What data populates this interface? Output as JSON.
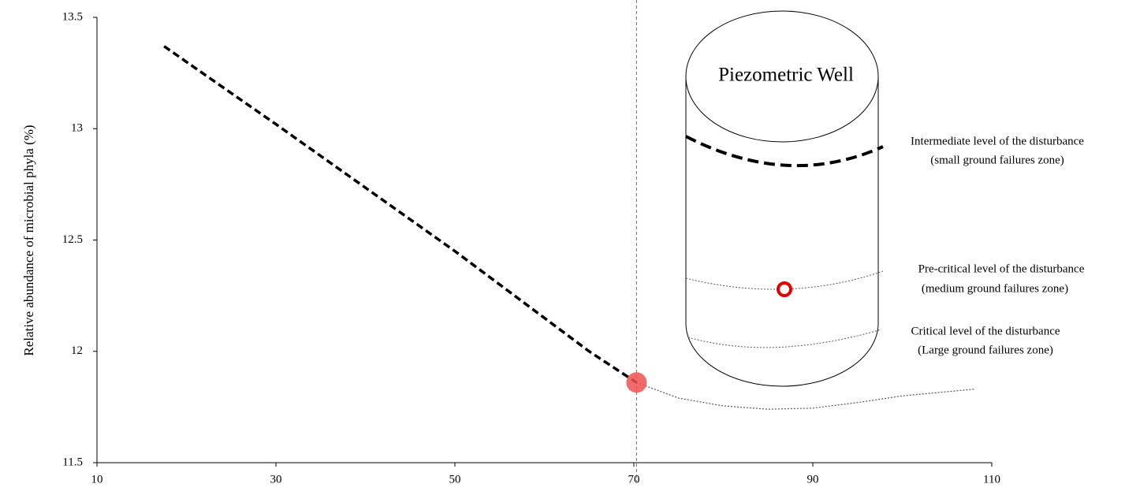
{
  "chart_data": {
    "type": "line",
    "y_label": "Relative abundance of microbial phyla (%)",
    "xlim": [
      10,
      110
    ],
    "xticks": [
      10,
      30,
      50,
      70,
      90,
      110
    ],
    "ylim": [
      11.5,
      13.5
    ],
    "yticks": [
      11.5,
      12,
      12.5,
      13,
      13.5
    ],
    "series": [
      {
        "color": "#000000",
        "style": "dashed",
        "x": [
          17.5,
          30,
          50,
          65,
          70.3
        ],
        "values": [
          13.37,
          13.02,
          12.45,
          12.0,
          11.86
        ]
      },
      {
        "color": "#555555",
        "style": "dotted",
        "x": [
          70.3,
          75,
          80,
          85,
          90,
          95,
          100,
          108
        ],
        "values": [
          11.86,
          11.79,
          11.755,
          11.74,
          11.745,
          11.77,
          11.8,
          11.83
        ]
      }
    ],
    "marker": {
      "x": 70.3,
      "y": 11.86,
      "color": "#f05050"
    },
    "vline": {
      "x": 70.3,
      "color": "#ff3030"
    },
    "annotations": {
      "well": "Piezometric Well",
      "intermediate": [
        "Intermediate level of the disturbance",
        "(small ground failures zone)"
      ],
      "precritical": [
        "Pre-critical level of the disturbance",
        "(medium ground failures zone)"
      ],
      "critical": [
        "Critical level of the disturbance",
        "(Large ground failures zone)"
      ]
    }
  }
}
